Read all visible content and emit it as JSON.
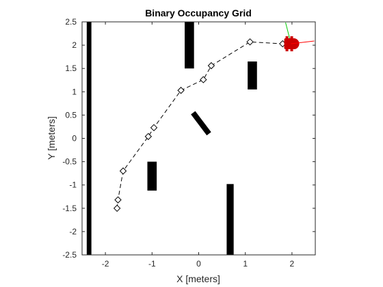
{
  "chart_data": {
    "type": "scatter",
    "title": "Binary Occupancy Grid",
    "xlabel": "X [meters]",
    "ylabel": "Y [meters]",
    "xlim": [
      -2.5,
      2.5
    ],
    "ylim": [
      -2.5,
      2.5
    ],
    "x_ticks": [
      -2,
      -1,
      0,
      1,
      2
    ],
    "x_tick_labels": [
      "-2",
      "-1",
      "0",
      "1",
      "2"
    ],
    "y_ticks": [
      -2.5,
      -2,
      -1.5,
      -1,
      -0.5,
      0,
      0.5,
      1,
      1.5,
      2,
      2.5
    ],
    "y_tick_labels": [
      "-2.5",
      "-2",
      "-1.5",
      "-1",
      "-0.5",
      "0",
      "0.5",
      "1",
      "1.5",
      "2",
      "2.5"
    ],
    "grid": false,
    "obstacles": [
      {
        "type": "rect",
        "x": [
          -2.4,
          -2.3
        ],
        "y": [
          -2.5,
          2.5
        ]
      },
      {
        "type": "rect",
        "x": [
          -1.1,
          -0.9
        ],
        "y": [
          -1.12,
          -0.5
        ]
      },
      {
        "type": "rect",
        "x": [
          -0.3,
          -0.1
        ],
        "y": [
          1.5,
          2.5
        ]
      },
      {
        "type": "rect",
        "x": [
          1.05,
          1.25
        ],
        "y": [
          1.05,
          1.65
        ]
      },
      {
        "type": "rect",
        "x": [
          0.6,
          0.75
        ],
        "y": [
          -2.5,
          -0.98
        ]
      },
      {
        "type": "segment",
        "x": [
          -0.12,
          0.22
        ],
        "y": [
          0.55,
          0.1
        ]
      }
    ],
    "path": {
      "x": [
        -1.75,
        -1.73,
        -1.62,
        -1.08,
        -0.96,
        -0.38,
        0.1,
        0.27,
        1.1,
        1.8
      ],
      "y": [
        -1.5,
        -1.32,
        -0.7,
        0.04,
        0.23,
        1.03,
        1.26,
        1.56,
        2.07,
        2.03
      ],
      "marker": "diamond",
      "line_style": "dashed",
      "line_color": "#000000"
    },
    "robot": {
      "x": 1.98,
      "y": 2.03,
      "body_color": "#cc0000",
      "heading_axis_color": "#ff0000",
      "side_axis_color": "#00cc00"
    }
  }
}
